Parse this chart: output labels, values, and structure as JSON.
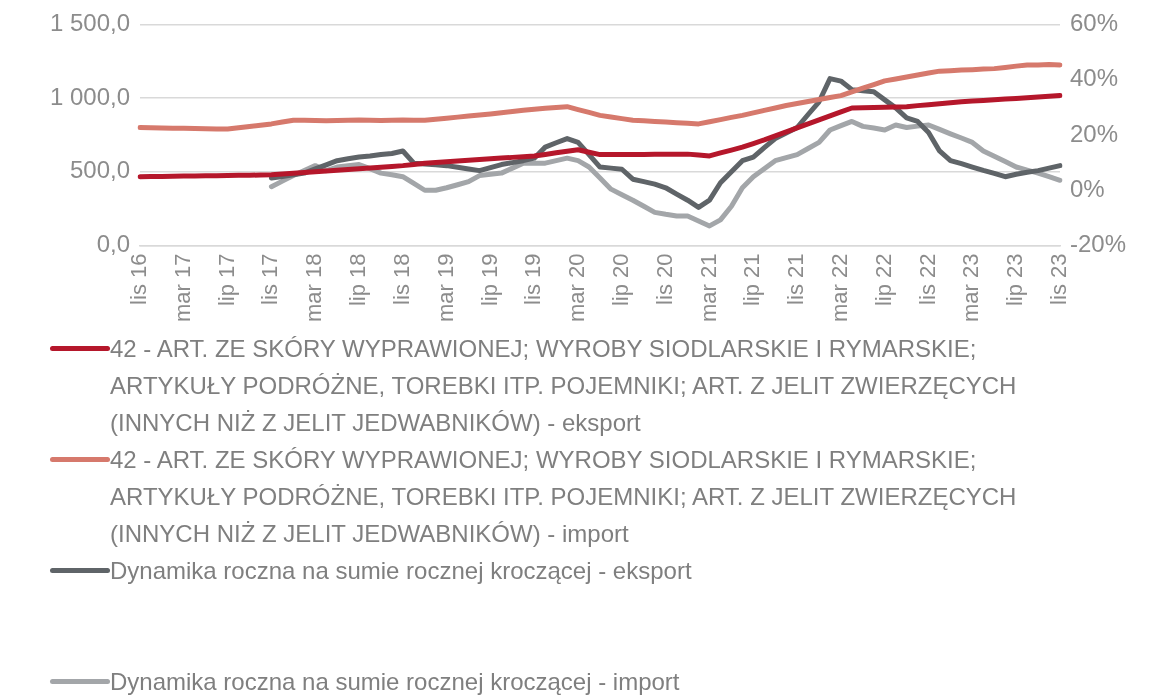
{
  "chart_data": {
    "type": "line",
    "categories": [
      "lis 16",
      null,
      null,
      null,
      "mar 17",
      null,
      null,
      null,
      "lip 17",
      null,
      null,
      null,
      "lis 17",
      null,
      null,
      null,
      "mar 18",
      null,
      null,
      null,
      "lip 18",
      null,
      null,
      null,
      "lis 18",
      null,
      null,
      null,
      "mar 19",
      null,
      null,
      null,
      "lip 19",
      null,
      null,
      null,
      "lis 19",
      null,
      null,
      null,
      "mar 20",
      null,
      null,
      null,
      "lip 20",
      null,
      null,
      null,
      "lis 20",
      null,
      null,
      null,
      "mar 21",
      null,
      null,
      null,
      "lip 21",
      null,
      null,
      null,
      "lis 21",
      null,
      null,
      null,
      "mar 22",
      null,
      null,
      null,
      "lip 22",
      null,
      null,
      null,
      "lis 22",
      null,
      null,
      null,
      "mar 23",
      null,
      null,
      null,
      "lip 23",
      null,
      null,
      null,
      "lis 23"
    ],
    "series": [
      {
        "name": "42 - ART. ZE SKÓRY WYPRAWIONEJ; WYROBY SIODLARSKIE I RYMARSKIE; ARTYKUŁY PODRÓŻNE, TOREBKI ITP. POJEMNIKI; ART. Z JELIT ZWIERZĘCYCH (INNYCH NIŻ Z JELIT JEDWABNIKÓW) - eksport",
        "color": "#b5172b",
        "values": [
          467,
          468,
          469,
          470,
          471,
          472,
          473,
          474,
          475,
          476,
          477,
          478,
          480,
          485,
          490,
          495,
          500,
          505,
          510,
          516,
          521,
          526,
          531,
          536,
          542,
          550,
          558,
          563,
          568,
          573,
          578,
          583,
          588,
          593,
          598,
          603,
          608,
          618,
          629,
          640,
          650,
          633,
          617,
          617,
          618,
          618,
          618,
          619,
          619,
          620,
          620,
          614,
          608,
          628,
          647,
          667,
          692,
          717,
          744,
          771,
          798,
          825,
          852,
          879,
          906,
          933,
          935,
          937,
          938,
          940,
          942,
          949,
          955,
          962,
          968,
          975,
          980,
          984,
          989,
          994,
          998,
          1003,
          1008,
          1012,
          1017
        ]
      },
      {
        "name": "42 - ART. ZE SKÓRY WYPRAWIONEJ; WYROBY SIODLARSKIE I RYMARSKIE; ARTYKUŁY PODRÓŻNE, TOREBKI ITP. POJEMNIKI; ART. Z JELIT ZWIERZĘCYCH (INNYCH NIŻ Z JELIT JEDWABNIKÓW) - import",
        "color": "#d6796c",
        "values": [
          800,
          799,
          797,
          796,
          795,
          794,
          792,
          791,
          790,
          799,
          807,
          816,
          825,
          838,
          850,
          850,
          848,
          847,
          848,
          850,
          852,
          850,
          848,
          850,
          852,
          850,
          850,
          857,
          864,
          871,
          878,
          885,
          892,
          900,
          909,
          917,
          925,
          931,
          937,
          942,
          922,
          903,
          883,
          872,
          861,
          850,
          846,
          842,
          838,
          833,
          829,
          825,
          840,
          854,
          869,
          883,
          900,
          917,
          933,
          950,
          963,
          977,
          990,
          1004,
          1017,
          1042,
          1067,
          1092,
          1117,
          1130,
          1143,
          1157,
          1170,
          1183,
          1186,
          1190,
          1193,
          1197,
          1200,
          1208,
          1217,
          1225,
          1225,
          1228,
          1225
        ]
      },
      {
        "name": "Dynamika roczna na sumie rocznej kroczącej - eksport",
        "color": "#5f6468",
        "axis": "y2",
        "values": [
          null,
          null,
          null,
          null,
          null,
          null,
          null,
          null,
          null,
          null,
          null,
          null,
          4.4,
          5,
          5.6,
          6.2,
          7.7,
          9.2,
          10.7,
          11.4,
          12,
          12.4,
          12.9,
          13.3,
          14.2,
          9.8,
          9.5,
          9.2,
          8.9,
          8.3,
          7.7,
          7.1,
          8.2,
          9.3,
          10,
          10.7,
          11.6,
          15.6,
          17.2,
          18.7,
          17.3,
          12.9,
          8.4,
          8,
          7.6,
          4,
          3.1,
          2.2,
          0.9,
          -1.4,
          -3.6,
          -6.2,
          -3.6,
          2.7,
          6.7,
          10.7,
          12,
          15.4,
          18.7,
          20.7,
          22.7,
          27.4,
          32,
          40.4,
          39.5,
          36.4,
          36,
          35.6,
          32.7,
          29.8,
          26.2,
          24.9,
          20.9,
          14.2,
          10.7,
          9.6,
          8.4,
          7.2,
          6.1,
          4.9,
          5.8,
          6.5,
          7.1,
          8,
          8.9
        ]
      },
      {
        "name": "Dynamika roczna na sumie rocznej kroczącej - import",
        "color": "#a3a6a9",
        "axis": "y2",
        "values": [
          null,
          null,
          null,
          null,
          null,
          null,
          null,
          null,
          null,
          null,
          null,
          null,
          1.3,
          3.3,
          5.3,
          7.1,
          8.9,
          7.1,
          8.4,
          8.9,
          9.3,
          7.8,
          6.2,
          5.6,
          4.9,
          2.5,
          0,
          0,
          0.9,
          2,
          3.1,
          5.3,
          5.8,
          6.2,
          8,
          9.8,
          9.8,
          9.8,
          10.7,
          11.6,
          10.7,
          8.4,
          4.4,
          0.4,
          -1.6,
          -3.6,
          -5.8,
          -8,
          -8.7,
          -9.3,
          -9.3,
          -11.1,
          -12.9,
          -10.7,
          -5.8,
          0.9,
          4.9,
          7.8,
          10.7,
          11.8,
          12.9,
          15.1,
          17.3,
          21.8,
          23.4,
          24.9,
          23.1,
          22.5,
          21.8,
          23.6,
          22.7,
          23.2,
          23.6,
          22,
          20.4,
          18.9,
          17.3,
          14.2,
          12.3,
          10.4,
          8.4,
          7.3,
          6.2,
          4.9,
          3.6
        ]
      }
    ],
    "ylim": [
      0,
      1500
    ],
    "yticks": [
      {
        "value": 0,
        "label": "0,0"
      },
      {
        "value": 500,
        "label": "500,0"
      },
      {
        "value": 1000,
        "label": "1 000,0"
      },
      {
        "value": 1500,
        "label": "1 500,0"
      }
    ],
    "y2lim": [
      -20,
      60
    ],
    "y2ticks": [
      {
        "value": -20,
        "label": "-20%"
      },
      {
        "value": 0,
        "label": "0%"
      },
      {
        "value": 20,
        "label": "20%"
      },
      {
        "value": 40,
        "label": "40%"
      },
      {
        "value": 60,
        "label": "60%"
      }
    ],
    "grid": "y",
    "legend": "bottom"
  }
}
